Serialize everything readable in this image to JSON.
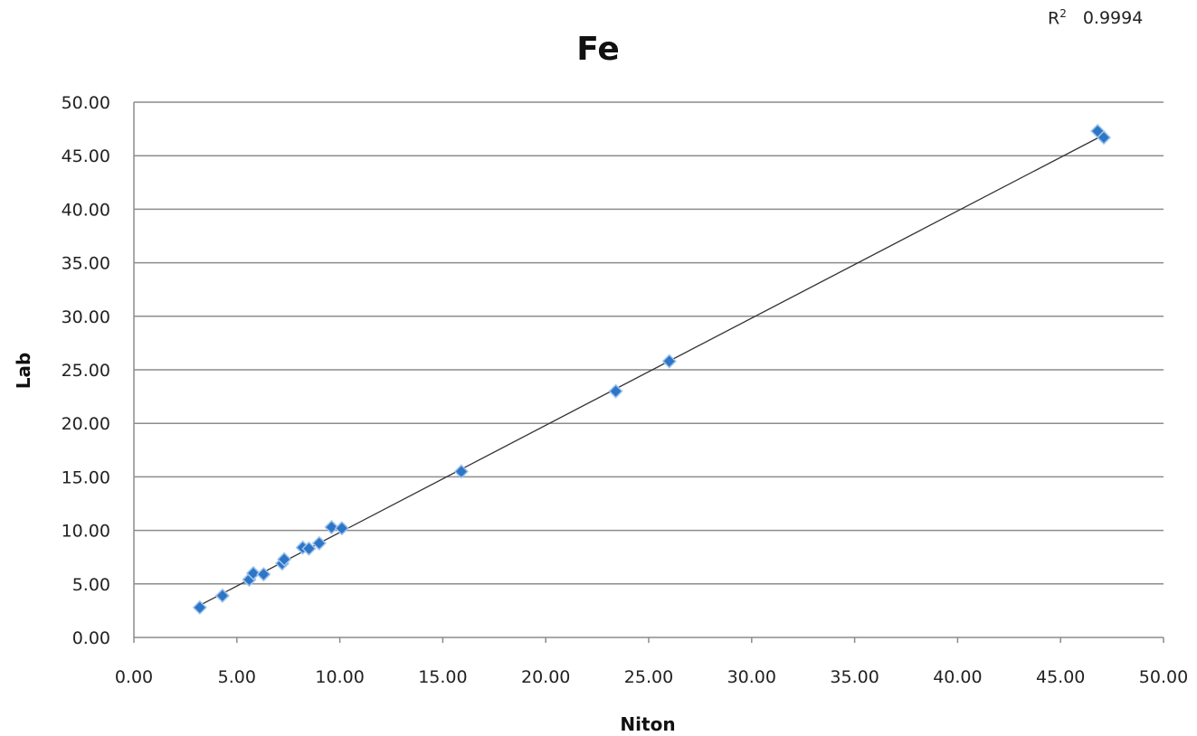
{
  "r2": {
    "label": "R",
    "superscript": "2",
    "value": "0.9994"
  },
  "chart_data": {
    "type": "scatter",
    "title": "Fe",
    "xlabel": "Niton",
    "ylabel": "Lab",
    "xlim": [
      0,
      50
    ],
    "ylim": [
      0,
      50
    ],
    "xticks": [
      "0.00",
      "5.00",
      "10.00",
      "15.00",
      "20.00",
      "25.00",
      "30.00",
      "35.00",
      "40.00",
      "45.00",
      "50.00"
    ],
    "yticks": [
      "0.00",
      "5.00",
      "10.00",
      "15.00",
      "20.00",
      "25.00",
      "30.00",
      "35.00",
      "40.00",
      "45.00",
      "50.00"
    ],
    "grid": "horizontal",
    "legend": "none",
    "marker_color": "#2e75c6",
    "trendline_color": "#333333",
    "series": [
      {
        "points": [
          [
            3.2,
            2.8
          ],
          [
            4.3,
            3.9
          ],
          [
            5.6,
            5.4
          ],
          [
            5.8,
            6.0
          ],
          [
            6.3,
            5.9
          ],
          [
            7.2,
            6.9
          ],
          [
            7.3,
            7.3
          ],
          [
            8.2,
            8.4
          ],
          [
            8.5,
            8.3
          ],
          [
            9.0,
            8.8
          ],
          [
            9.6,
            10.3
          ],
          [
            10.1,
            10.2
          ],
          [
            15.9,
            15.5
          ],
          [
            23.4,
            23.0
          ],
          [
            26.0,
            25.8
          ],
          [
            46.8,
            47.3
          ],
          [
            47.1,
            46.7
          ]
        ],
        "trendline": {
          "x": [
            3.2,
            47.1
          ],
          "y": [
            3.0,
            46.95
          ]
        }
      }
    ]
  }
}
